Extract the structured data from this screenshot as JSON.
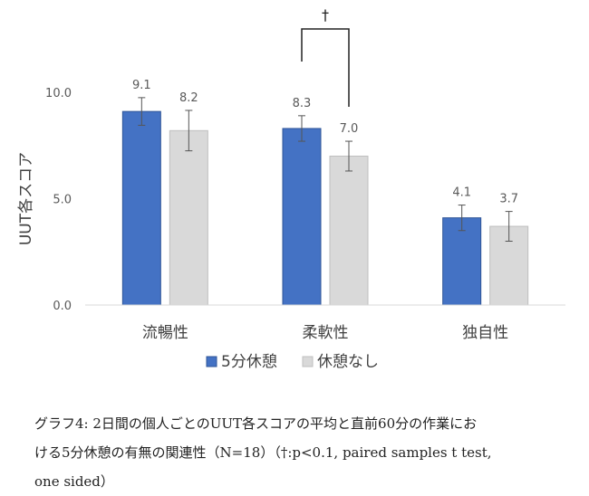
{
  "chart_data": {
    "type": "bar",
    "categories": [
      "流暢性",
      "柔軟性",
      "独自性"
    ],
    "series": [
      {
        "name": "5分休憩",
        "values": [
          9.1,
          8.3,
          4.1
        ],
        "errors": [
          0.65,
          0.6,
          0.6
        ],
        "color": "#4472C4"
      },
      {
        "name": "休憩なし",
        "values": [
          8.2,
          7.0,
          3.7
        ],
        "errors": [
          0.95,
          0.7,
          0.7
        ],
        "color": "#D9D9D9"
      }
    ],
    "value_labels": [
      [
        "9.1",
        "8.3",
        "4.1"
      ],
      [
        "8.2",
        "7.0",
        "3.7"
      ]
    ],
    "ylabel": "UUT各スコア",
    "xlabel": "",
    "ylim": [
      0,
      11.5
    ],
    "yticks": [
      "0.0",
      "5.0",
      "10.0"
    ],
    "ytick_values": [
      0,
      5,
      10
    ],
    "grid": false,
    "legend_position": "bottom",
    "significance": {
      "symbol": "†",
      "category": "柔軟性",
      "between": [
        "5分休憩",
        "休憩なし"
      ]
    }
  },
  "caption": {
    "line1": "グラフ4: 2日間の個人ごとのUUT各スコアの平均と直前60分の作業にお",
    "line2": "ける5分休憩の有無の関連性（N=18）（†:p<0.1, paired samples t test,",
    "line3": "one sided）"
  }
}
